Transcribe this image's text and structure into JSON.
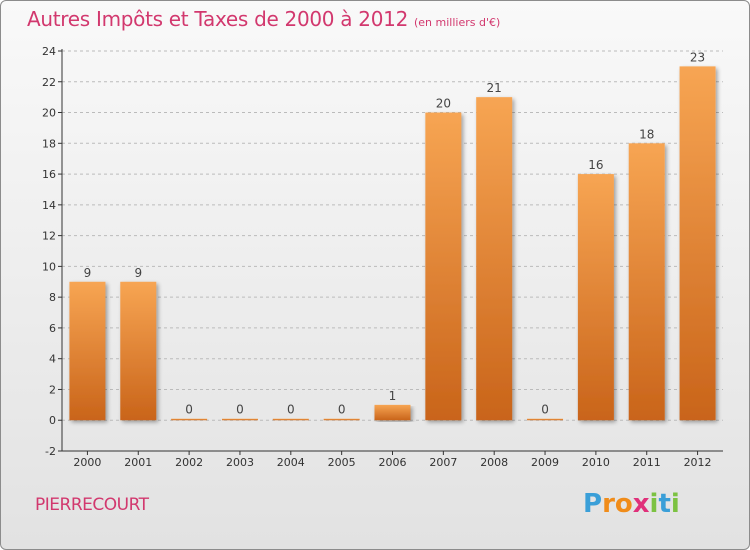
{
  "title": "Autres Impôts et Taxes de 2000 à 2012",
  "subtitle": "(en milliers d'€)",
  "commune": "PIERRECOURT",
  "brand": {
    "text": "Proxiti",
    "letters": [
      {
        "ch": "P",
        "color": "#3a9fd8"
      },
      {
        "ch": "r",
        "color": "#f08c1a"
      },
      {
        "ch": "o",
        "color": "#f08c1a"
      },
      {
        "ch": "x",
        "color": "#e0307a"
      },
      {
        "ch": "i",
        "color": "#7cc242"
      },
      {
        "ch": "t",
        "color": "#3a9fd8"
      },
      {
        "ch": "i",
        "color": "#7cc242"
      }
    ]
  },
  "colors": {
    "title": "#d2386e",
    "bar_light": "#f7a553",
    "bar_dark": "#c9641a",
    "axis": "#333333",
    "grid": "#bbbbbb"
  },
  "chart_data": {
    "type": "bar",
    "categories": [
      "2000",
      "2001",
      "2002",
      "2003",
      "2004",
      "2005",
      "2006",
      "2007",
      "2008",
      "2009",
      "2010",
      "2011",
      "2012"
    ],
    "values": [
      9,
      9,
      0,
      0,
      0,
      0,
      1,
      20,
      21,
      0,
      16,
      18,
      23
    ],
    "value_labels": [
      "9",
      "9",
      "0",
      "0",
      "0",
      "0",
      "1",
      "20",
      "21",
      "0",
      "16",
      "18",
      "23"
    ],
    "ylim": [
      -2,
      24
    ],
    "yticks": [
      -2,
      0,
      2,
      4,
      6,
      8,
      10,
      12,
      14,
      16,
      18,
      20,
      22,
      24
    ],
    "ytick_labels": [
      "-2",
      "0",
      "2",
      "4",
      "6",
      "8",
      "10",
      "12",
      "14",
      "16",
      "18",
      "20",
      "22",
      "24"
    ],
    "xlabel": "",
    "ylabel": "",
    "grid": "horizontal dashed",
    "legend": "none"
  }
}
